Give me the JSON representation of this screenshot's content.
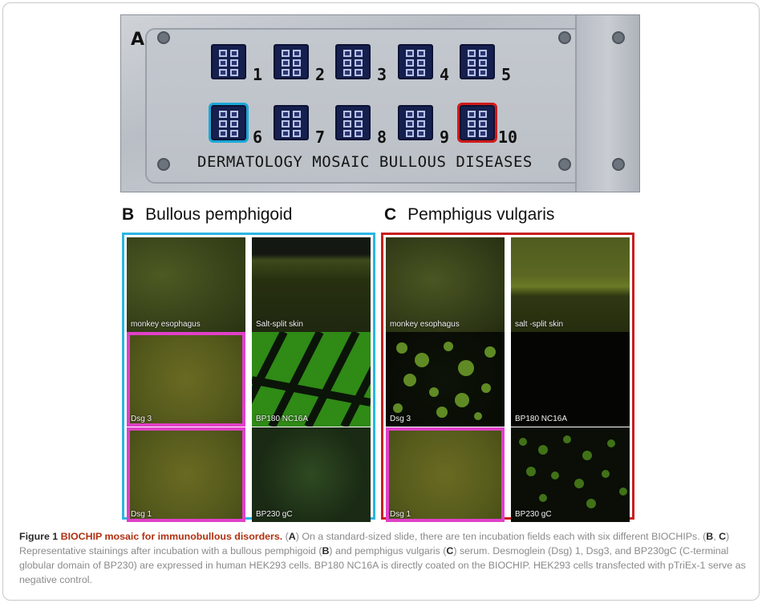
{
  "panel_a": {
    "letter": "A",
    "slide_text": "DERMATOLOGY MOSAIC BULLOUS DISEASES",
    "field_numbers": [
      "1",
      "2",
      "3",
      "4",
      "5",
      "6",
      "7",
      "8",
      "9",
      "10"
    ]
  },
  "panel_b": {
    "letter": "B",
    "title": "Bullous pemphigoid",
    "tiles": [
      "monkey esophagus",
      "Salt-split skin",
      "Dsg 3",
      "BP180 NC16A",
      "Dsg 1",
      "BP230 gC"
    ]
  },
  "panel_c": {
    "letter": "C",
    "title": "Pemphigus vulgaris",
    "tiles": [
      "monkey esophagus",
      "salt -split skin",
      "Dsg 3",
      "BP180 NC16A",
      "Dsg 1",
      "BP230 gC"
    ]
  },
  "caption": {
    "figure_label": "Figure 1",
    "figure_title": "BIOCHIP mosaic for immunobullous disorders.",
    "p1": "(",
    "r1": "A",
    "p2": ") On a standard-sized slide, there are ten incubation fields each with six different BIOCHIPs. (",
    "r2": "B",
    "p3": ", ",
    "r3": "C",
    "p4": ") Representative stainings after incubation with a bullous pemphigoid (",
    "r4": "B",
    "p5": ") and pemphigus vulgaris (",
    "r5": "C",
    "p6": ") serum. Desmoglein (Dsg) 1, Dsg3, and BP230gC (C-terminal globular domain of BP230) are expressed in human HEK293 cells. BP180 NC16A is directly coated on the BIOCHIP. HEK293 cells transfected with pTriEx-1 serve as negative control."
  },
  "colors": {
    "highlight_b": "#2bb5e3",
    "highlight_c": "#c81e1e",
    "highlight_tile": "#e040c8"
  }
}
